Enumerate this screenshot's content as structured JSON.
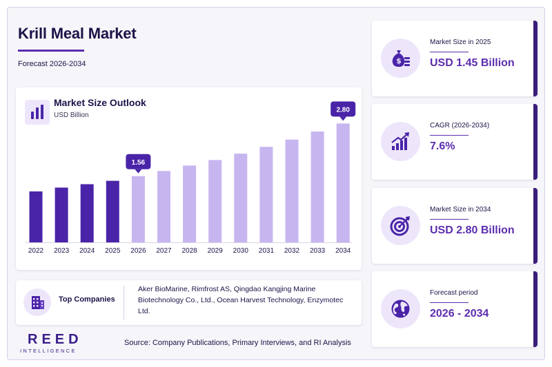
{
  "header": {
    "title": "Krill Meal Market",
    "subtitle": "Forecast 2026-2034"
  },
  "chart_data": {
    "type": "bar",
    "title": "Market Size Outlook",
    "unit": "USD Billion",
    "categories": [
      "2022",
      "2023",
      "2024",
      "2025",
      "2026",
      "2027",
      "2028",
      "2029",
      "2030",
      "2031",
      "2032",
      "2033",
      "2034"
    ],
    "values": [
      1.2,
      1.29,
      1.37,
      1.45,
      1.56,
      1.68,
      1.81,
      1.94,
      2.09,
      2.25,
      2.42,
      2.61,
      2.8
    ],
    "forecast_start": "2026",
    "callouts": [
      {
        "category": "2026",
        "label": "1.56"
      },
      {
        "category": "2034",
        "label": "2.80"
      }
    ],
    "ylim": [
      0,
      3.0
    ],
    "grid": false,
    "colors": {
      "historical": "#4a24a8",
      "forecast": "#c7b5f0",
      "callout": "#4a24a8"
    }
  },
  "companies": {
    "label": "Top Companies",
    "list": "Aker BioMarine, Rimfrost AS, Qingdao Kangjing Marine Biotechnology Co., Ltd., Ocean Harvest Technology, Enzymotec Ltd."
  },
  "stats": [
    {
      "label": "Market Size in 2025",
      "value": "USD 1.45 Billion",
      "icon": "money-bag-icon"
    },
    {
      "label": "CAGR (2026-2034)",
      "value": "7.6%",
      "icon": "growth-chart-icon"
    },
    {
      "label": "Market Size in 2034",
      "value": "USD 2.80 Billion",
      "icon": "target-icon"
    },
    {
      "label": "Forecast period",
      "value": "2026 - 2034",
      "icon": "globe-icon"
    }
  ],
  "footer": {
    "logo_main": "REED",
    "logo_sub": "INTELLIGENCE",
    "source": "Source: Company Publications, Primary Interviews, and RI Analysis"
  }
}
